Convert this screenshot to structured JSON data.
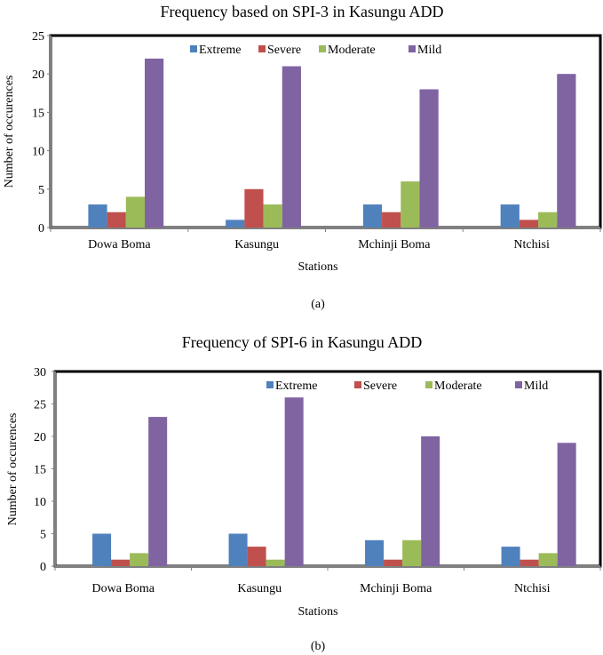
{
  "chart_data": [
    {
      "type": "bar",
      "title": "Frequency based on SPI-3 in Kasungu ADD",
      "xlabel": "Stations",
      "ylabel": "Number of occurences",
      "caption": "(a)",
      "ylim": [
        0,
        25
      ],
      "yticks": [
        0,
        5,
        10,
        15,
        20,
        25
      ],
      "grid": false,
      "legend_position": "top-center",
      "categories": [
        "Dowa Boma",
        "Kasungu",
        "Mchinji Boma",
        "Ntchisi"
      ],
      "series": [
        {
          "name": "Extreme",
          "color": "#4f81bd",
          "values": [
            3,
            1,
            3,
            3
          ]
        },
        {
          "name": "Severe",
          "color": "#c0504d",
          "values": [
            2,
            5,
            2,
            1
          ]
        },
        {
          "name": "Moderate",
          "color": "#9bbb59",
          "values": [
            4,
            3,
            6,
            2
          ]
        },
        {
          "name": "Mild",
          "color": "#8064a2",
          "values": [
            22,
            21,
            18,
            20
          ]
        }
      ]
    },
    {
      "type": "bar",
      "title": "Frequency of SPI-6 in Kasungu ADD",
      "xlabel": "Stations",
      "ylabel": "Number of occurences",
      "caption": "(b)",
      "ylim": [
        0,
        30
      ],
      "yticks": [
        0,
        5,
        10,
        15,
        20,
        25,
        30
      ],
      "grid": false,
      "legend_position": "top-right",
      "categories": [
        "Dowa Boma",
        "Kasungu",
        "Mchinji Boma",
        "Ntchisi"
      ],
      "series": [
        {
          "name": "Extreme",
          "color": "#4f81bd",
          "values": [
            5,
            5,
            4,
            3
          ]
        },
        {
          "name": "Severe",
          "color": "#c0504d",
          "values": [
            1,
            3,
            1,
            1
          ]
        },
        {
          "name": "Moderate",
          "color": "#9bbb59",
          "values": [
            2,
            1,
            4,
            2
          ]
        },
        {
          "name": "Mild",
          "color": "#8064a2",
          "values": [
            23,
            26,
            20,
            19
          ]
        }
      ]
    }
  ]
}
